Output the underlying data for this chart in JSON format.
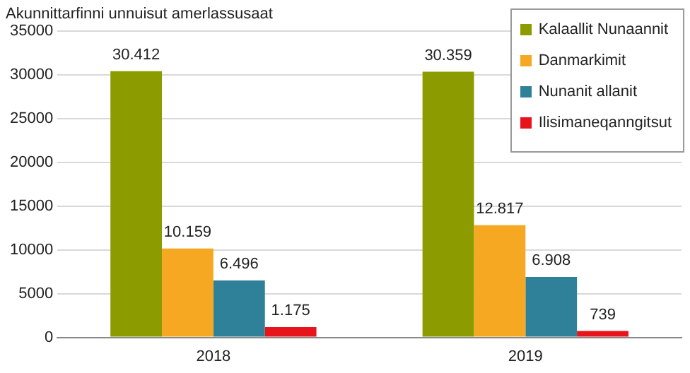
{
  "chart_data": {
    "type": "bar",
    "title": "Akunnittarfinni unnuisut amerlassusaat",
    "categories": [
      "2018",
      "2019"
    ],
    "series": [
      {
        "name": "Kalaallit Nunaannit",
        "color": "#8c9c00",
        "values": [
          30412,
          30359
        ],
        "value_labels": [
          "30.412",
          "30.359"
        ]
      },
      {
        "name": "Danmarkimit",
        "color": "#f7a823",
        "values": [
          10159,
          12817
        ],
        "value_labels": [
          "10.159",
          "12.817"
        ]
      },
      {
        "name": "Nunanit allanit",
        "color": "#2e8199",
        "values": [
          6496,
          6908
        ],
        "value_labels": [
          "6.496",
          "6.908"
        ]
      },
      {
        "name": "Ilisimaneqanngitsut",
        "color": "#e8141b",
        "values": [
          1175,
          739
        ],
        "value_labels": [
          "1.175",
          "739"
        ]
      }
    ],
    "ylim": [
      0,
      35000
    ],
    "yticks": [
      0,
      5000,
      10000,
      15000,
      20000,
      25000,
      30000,
      35000
    ],
    "grid": "y",
    "legend": "top right"
  }
}
